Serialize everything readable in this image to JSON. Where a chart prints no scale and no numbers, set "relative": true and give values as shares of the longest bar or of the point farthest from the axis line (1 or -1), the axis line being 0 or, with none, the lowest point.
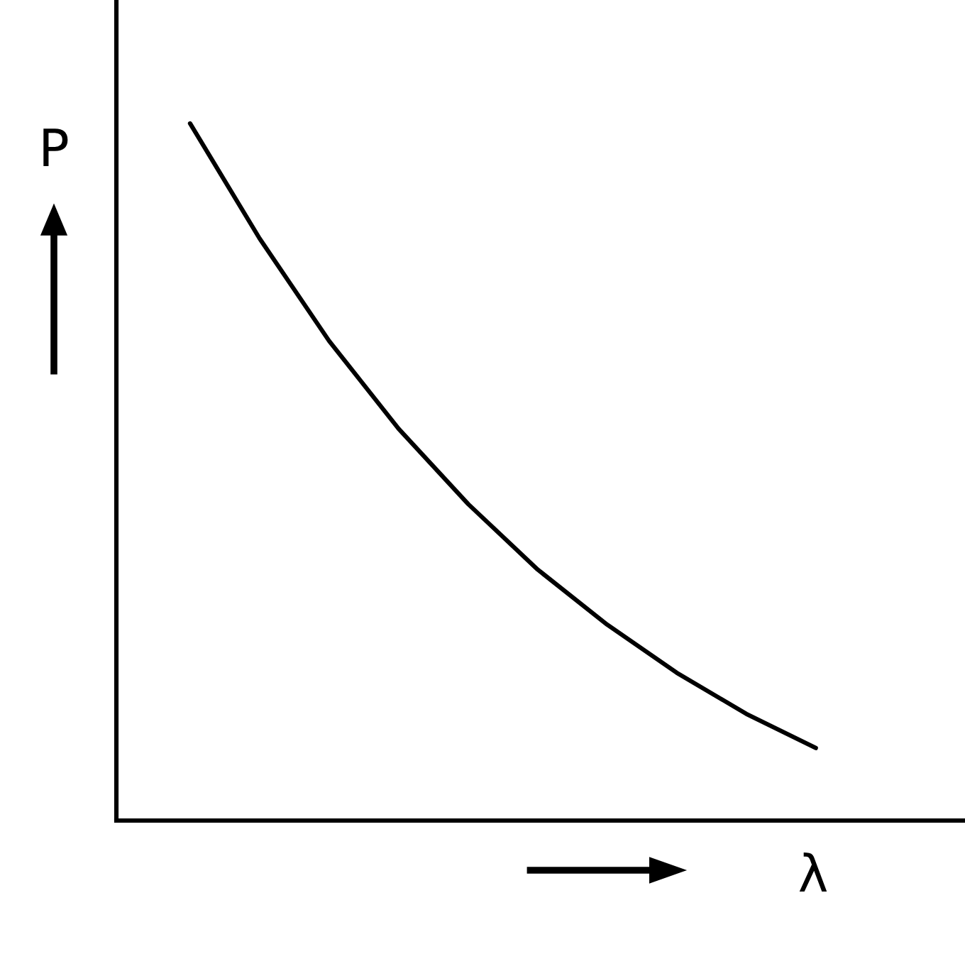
{
  "chart_data": {
    "type": "line",
    "relative": true,
    "xlabel": "λ",
    "ylabel": "P",
    "categories": [
      null,
      null,
      null,
      null,
      null,
      null,
      null,
      null,
      null,
      null
    ],
    "series": [
      {
        "color": "#000000",
        "values": [
          1,
          0.835,
          0.688,
          0.562,
          0.454,
          0.36,
          0.281,
          0.212,
          0.153,
          0.104
        ]
      }
    ],
    "grid": false,
    "legend": false,
    "line_style": "solid",
    "marker": "none"
  }
}
